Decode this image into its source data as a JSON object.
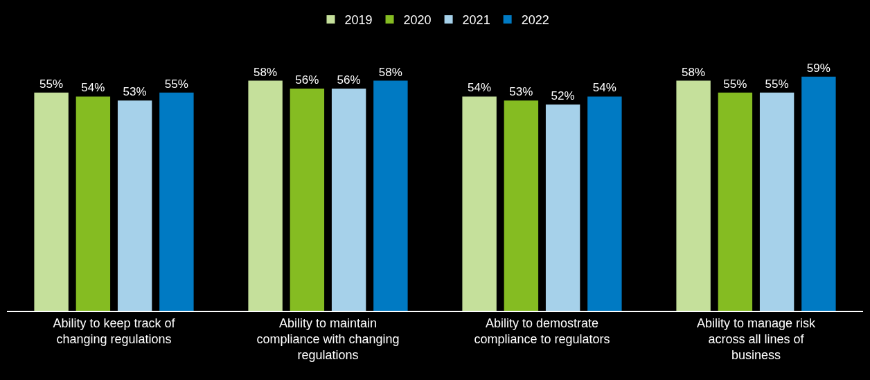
{
  "chart_data": {
    "type": "bar",
    "categories": [
      "Ability to keep track of changing regulations",
      "Ability to maintain compliance with changing regulations",
      "Ability to demostrate compliance to regulators",
      "Ability to manage risk across all lines of business"
    ],
    "series": [
      {
        "name": "2019",
        "color": "#c5e09b",
        "values": [
          55,
          58,
          54,
          58
        ],
        "value_labels": [
          "55%",
          "58%",
          "54%",
          "58%"
        ]
      },
      {
        "name": "2020",
        "color": "#85bc22",
        "values": [
          54,
          56,
          53,
          55
        ],
        "value_labels": [
          "54%",
          "56%",
          "53%",
          "55%"
        ]
      },
      {
        "name": "2021",
        "color": "#a6d1ea",
        "values": [
          53,
          56,
          52,
          55
        ],
        "value_labels": [
          "53%",
          "56%",
          "52%",
          "55%"
        ]
      },
      {
        "name": "2022",
        "color": "#007ac3",
        "values": [
          55,
          58,
          54,
          59
        ],
        "value_labels": [
          "55%",
          "58%",
          "54%",
          "59%"
        ]
      }
    ],
    "legend": "top"
  }
}
